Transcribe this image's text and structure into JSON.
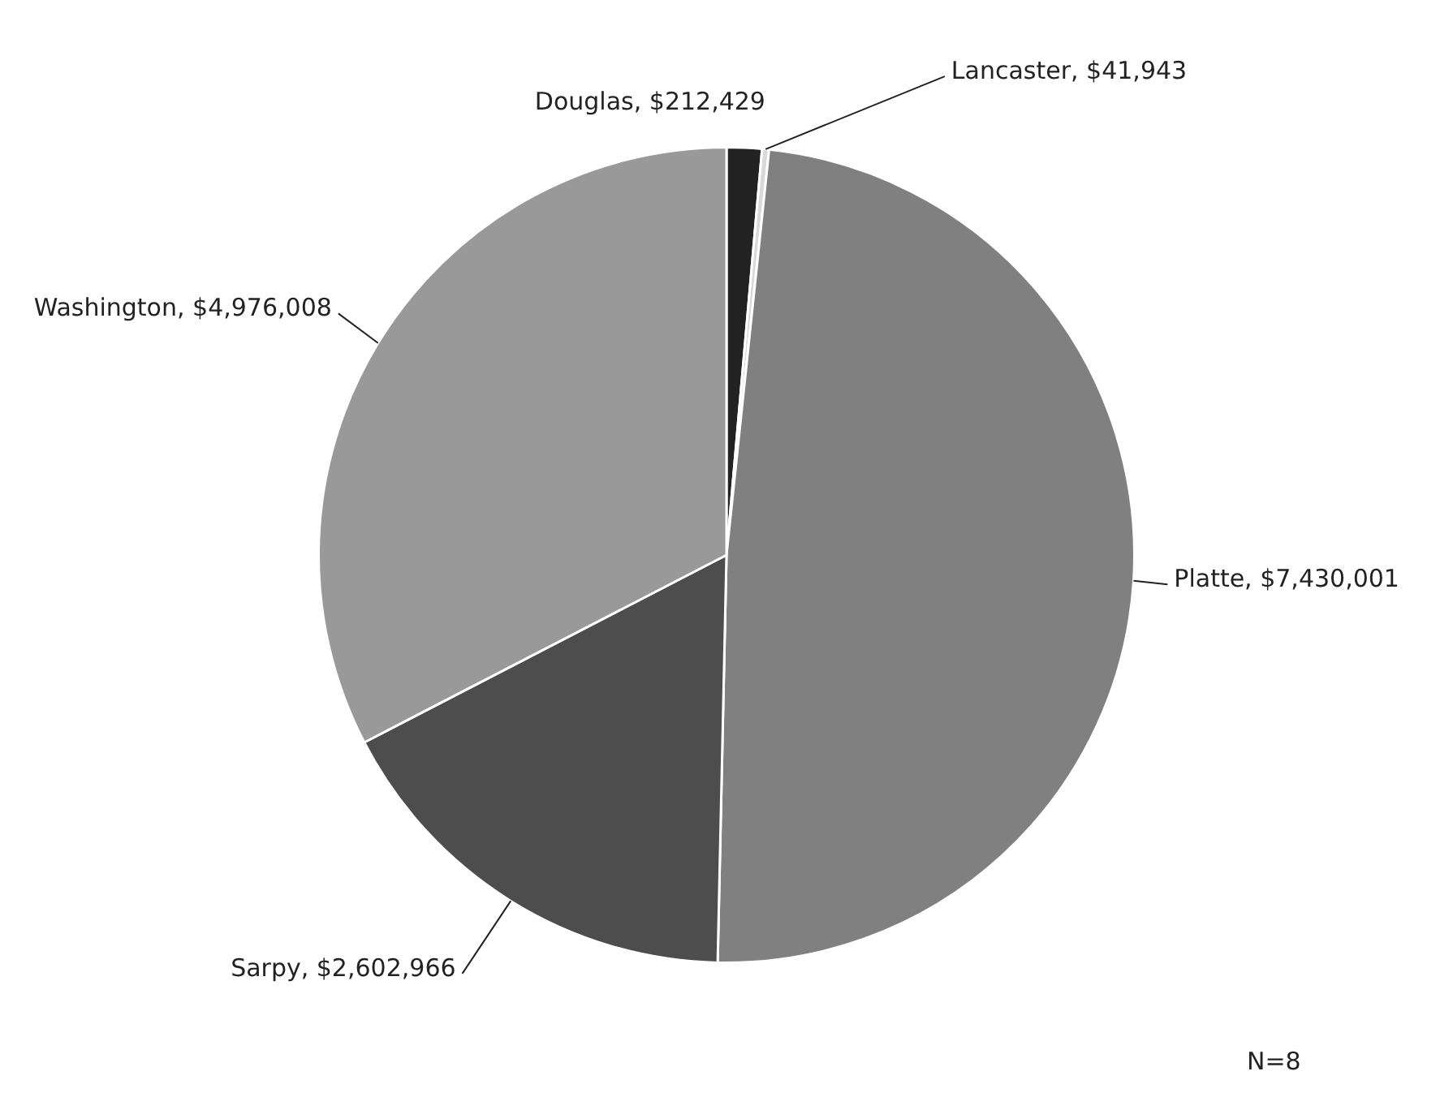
{
  "chart_data": {
    "type": "pie",
    "categories": [
      "Douglas",
      "Lancaster",
      "Platte",
      "Sarpy",
      "Washington"
    ],
    "values": [
      212429,
      41943,
      7430001,
      2602966,
      4976008
    ],
    "value_labels": [
      "$212,429",
      "$41,943",
      "$7,430,001",
      "$2,602,966",
      "$4,976,008"
    ],
    "colors": [
      "#222222",
      "#d9d9d9",
      "#808080",
      "#4d4d4d",
      "#999999"
    ],
    "annotations": [
      "N=8"
    ],
    "legend": false
  }
}
